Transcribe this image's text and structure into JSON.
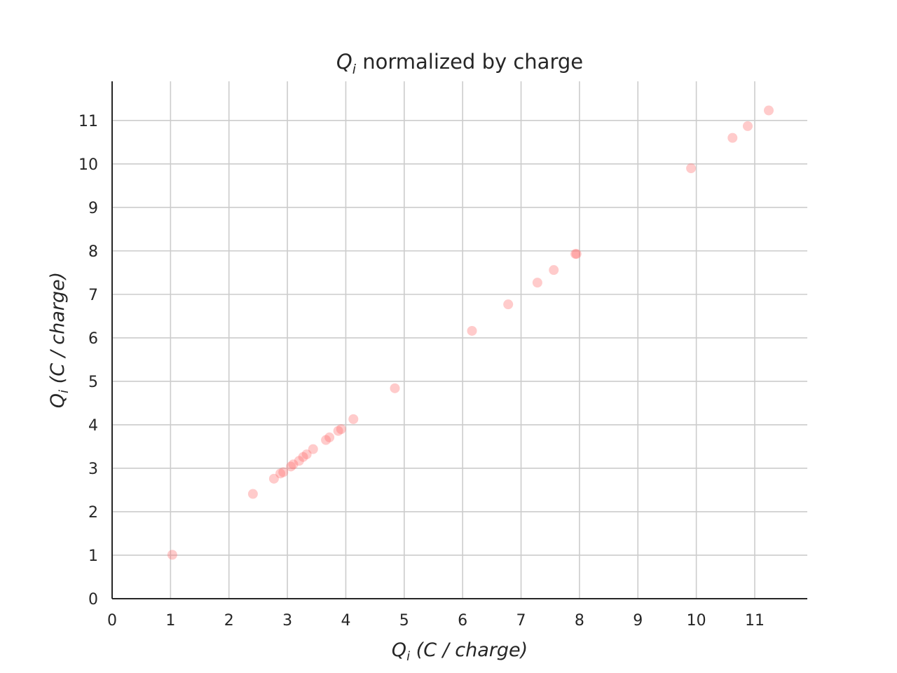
{
  "chart_data": {
    "type": "scatter",
    "title": {
      "symbol": "Q",
      "subscript": "i",
      "text": " normalized by charge"
    },
    "xlabel": {
      "symbol": "Q",
      "subscript": "i",
      "text": " (C / charge)"
    },
    "ylabel": {
      "symbol": "Q",
      "subscript": "i",
      "text": " (C / charge)"
    },
    "xlim": [
      0,
      11.9
    ],
    "ylim": [
      0,
      11.9
    ],
    "xticks": [
      0,
      1,
      2,
      3,
      4,
      5,
      6,
      7,
      8,
      9,
      10,
      11
    ],
    "yticks": [
      0,
      1,
      2,
      3,
      4,
      5,
      6,
      7,
      8,
      9,
      10,
      11
    ],
    "grid": true,
    "marker_color": "#ff6b6b",
    "marker_opacity": 0.35,
    "series": [
      {
        "points": [
          [
            1.03,
            1.01
          ],
          [
            2.41,
            2.41
          ],
          [
            2.77,
            2.76
          ],
          [
            2.88,
            2.88
          ],
          [
            2.93,
            2.91
          ],
          [
            3.06,
            3.04
          ],
          [
            3.1,
            3.09
          ],
          [
            3.2,
            3.17
          ],
          [
            3.27,
            3.26
          ],
          [
            3.33,
            3.32
          ],
          [
            3.44,
            3.44
          ],
          [
            3.66,
            3.65
          ],
          [
            3.72,
            3.71
          ],
          [
            3.87,
            3.86
          ],
          [
            3.92,
            3.9
          ],
          [
            4.13,
            4.13
          ],
          [
            4.84,
            4.84
          ],
          [
            6.16,
            6.16
          ],
          [
            6.78,
            6.77
          ],
          [
            7.28,
            7.27
          ],
          [
            7.56,
            7.56
          ],
          [
            7.93,
            7.93
          ],
          [
            7.95,
            7.93
          ],
          [
            9.91,
            9.9
          ],
          [
            10.62,
            10.6
          ],
          [
            10.88,
            10.87
          ],
          [
            11.24,
            11.23
          ]
        ]
      }
    ]
  }
}
